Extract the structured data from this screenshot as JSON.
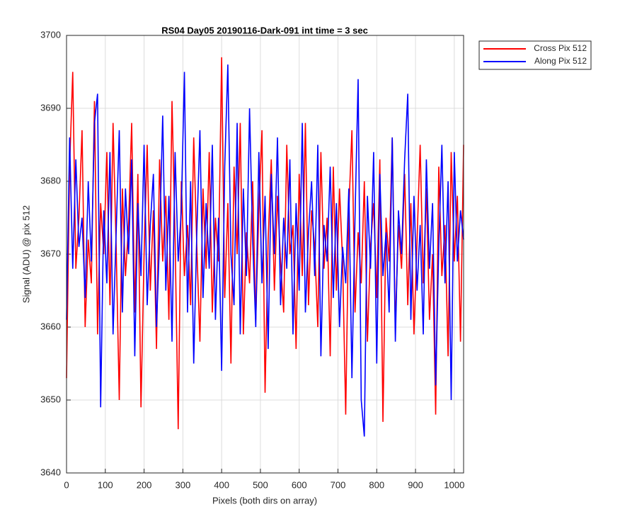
{
  "chart_data": {
    "type": "line",
    "title": "RS04 Day05 20190116-Dark-091 int time = 3 sec",
    "xlabel": "Pixels (both dirs on array)",
    "ylabel": "Signal (ADU) @ pix 512",
    "x": [
      0,
      8,
      16,
      24,
      32,
      40,
      48,
      56,
      64,
      72,
      80,
      88,
      96,
      104,
      112,
      120,
      128,
      136,
      144,
      152,
      160,
      168,
      176,
      184,
      192,
      200,
      208,
      216,
      224,
      232,
      240,
      248,
      256,
      264,
      272,
      280,
      288,
      296,
      304,
      312,
      320,
      328,
      336,
      344,
      352,
      360,
      368,
      376,
      384,
      392,
      400,
      408,
      416,
      424,
      432,
      440,
      448,
      456,
      464,
      472,
      480,
      488,
      496,
      504,
      512,
      520,
      528,
      536,
      544,
      552,
      560,
      568,
      576,
      584,
      592,
      600,
      608,
      616,
      624,
      632,
      640,
      648,
      656,
      664,
      672,
      680,
      688,
      696,
      704,
      712,
      720,
      728,
      736,
      744,
      752,
      760,
      768,
      776,
      784,
      792,
      800,
      808,
      816,
      824,
      832,
      840,
      848,
      856,
      864,
      872,
      880,
      888,
      896,
      904,
      912,
      920,
      928,
      936,
      944,
      952,
      960,
      968,
      976,
      984,
      992,
      1000,
      1008,
      1016,
      1024
    ],
    "series": [
      {
        "name": "Cross Pix 512",
        "color": "#ff0000",
        "values": [
          3653,
          3682,
          3695,
          3668,
          3675,
          3687,
          3660,
          3672,
          3666,
          3691,
          3659,
          3677,
          3670,
          3684,
          3663,
          3688,
          3671,
          3650,
          3679,
          3667,
          3674,
          3688,
          3662,
          3681,
          3649,
          3670,
          3685,
          3665,
          3676,
          3657,
          3683,
          3669,
          3678,
          3661,
          3691,
          3672,
          3646,
          3680,
          3667,
          3674,
          3663,
          3686,
          3671,
          3658,
          3679,
          3668,
          3684,
          3662,
          3675,
          3669,
          3697,
          3664,
          3677,
          3655,
          3682,
          3670,
          3688,
          3659,
          3673,
          3666,
          3680,
          3661,
          3676,
          3687,
          3651,
          3672,
          3683,
          3665,
          3678,
          3669,
          3662,
          3685,
          3670,
          3674,
          3657,
          3681,
          3667,
          3688,
          3663,
          3676,
          3671,
          3660,
          3684,
          3668,
          3675,
          3656,
          3682,
          3665,
          3679,
          3669,
          3648,
          3676,
          3687,
          3662,
          3673,
          3666,
          3680,
          3658,
          3671,
          3677,
          3664,
          3683,
          3647,
          3675,
          3669,
          3686,
          3660,
          3674,
          3668,
          3681,
          3663,
          3677,
          3659,
          3672,
          3685,
          3666,
          3679,
          3661,
          3670,
          3648,
          3682,
          3667,
          3674,
          3656,
          3684,
          3669,
          3678,
          3658,
          3685
        ]
      },
      {
        "name": "Along Pix 512",
        "color": "#0000ff",
        "values": [
          3661,
          3686,
          3668,
          3683,
          3671,
          3675,
          3664,
          3680,
          3669,
          3688,
          3692,
          3649,
          3676,
          3666,
          3684,
          3659,
          3673,
          3687,
          3662,
          3679,
          3670,
          3683,
          3656,
          3677,
          3667,
          3685,
          3663,
          3674,
          3681,
          3660,
          3672,
          3689,
          3665,
          3678,
          3658,
          3684,
          3669,
          3676,
          3695,
          3662,
          3680,
          3655,
          3673,
          3687,
          3664,
          3677,
          3668,
          3685,
          3661,
          3675,
          3654,
          3682,
          3696,
          3670,
          3663,
          3688,
          3659,
          3679,
          3667,
          3690,
          3672,
          3660,
          3684,
          3666,
          3678,
          3657,
          3681,
          3670,
          3686,
          3663,
          3675,
          3668,
          3683,
          3659,
          3677,
          3665,
          3688,
          3662,
          3673,
          3680,
          3667,
          3685,
          3656,
          3674,
          3669,
          3682,
          3664,
          3677,
          3660,
          3671,
          3666,
          3679,
          3653,
          3675,
          3694,
          3650,
          3645,
          3678,
          3668,
          3684,
          3655,
          3681,
          3667,
          3673,
          3662,
          3686,
          3658,
          3676,
          3670,
          3683,
          3692,
          3661,
          3678,
          3665,
          3674,
          3659,
          3683,
          3668,
          3677,
          3652,
          3671,
          3685,
          3666,
          3680,
          3650,
          3684,
          3669,
          3676,
          3672
        ]
      }
    ],
    "xlim": [
      0,
      1024
    ],
    "xticks": [
      0,
      100,
      200,
      300,
      400,
      500,
      600,
      700,
      800,
      900,
      1000
    ],
    "ylim": [
      3640,
      3700
    ],
    "yticks": [
      3640,
      3650,
      3660,
      3670,
      3680,
      3690,
      3700
    ],
    "grid": true,
    "legend": "outside-right"
  }
}
